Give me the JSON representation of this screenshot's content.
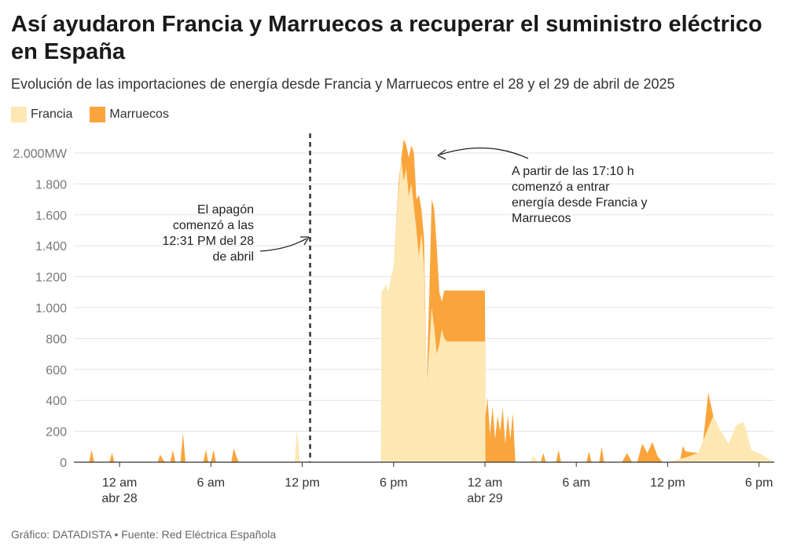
{
  "title": "Así ayudaron Francia y Marruecos a recuperar el suministro eléctrico en España",
  "subtitle": "Evolución de las importaciones de energía desde Francia y Marruecos entre el 28 y el 29 de abril de 2025",
  "footer": "Gráfico: DATADISTA • Fuente: Red Eléctrica Española",
  "colors": {
    "francia": "#fde8b4",
    "marruecos": "#f9a53c",
    "grid": "#e3e3e3",
    "axis": "#333333"
  },
  "chart_data": {
    "type": "area",
    "stacked": true,
    "ylim": [
      0,
      2000
    ],
    "y_ticks": [
      0,
      200,
      400,
      600,
      800,
      1000,
      1200,
      1400,
      1600,
      1800,
      2000
    ],
    "y_tick_labels": [
      "0",
      "200",
      "400",
      "600",
      "800",
      "1.000",
      "1.200",
      "1.400",
      "1.600",
      "1.800",
      "2.000MW"
    ],
    "xlim": [
      "2025-04-27T21:00",
      "2025-04-29T19:00"
    ],
    "x_ticks": [
      {
        "t": "2025-04-28T00:00",
        "line1": "12 am",
        "line2": "abr 28"
      },
      {
        "t": "2025-04-28T06:00",
        "line1": "6 am",
        "line2": ""
      },
      {
        "t": "2025-04-28T12:00",
        "line1": "12 pm",
        "line2": ""
      },
      {
        "t": "2025-04-28T18:00",
        "line1": "6 pm",
        "line2": ""
      },
      {
        "t": "2025-04-29T00:00",
        "line1": "12 am",
        "line2": "abr 29"
      },
      {
        "t": "2025-04-29T06:00",
        "line1": "6 am",
        "line2": ""
      },
      {
        "t": "2025-04-29T12:00",
        "line1": "12 pm",
        "line2": ""
      },
      {
        "t": "2025-04-29T18:00",
        "line1": "6 pm",
        "line2": ""
      }
    ],
    "series": [
      {
        "name": "Francia",
        "points": [
          [
            "2025-04-27T21:00",
            0
          ],
          [
            "2025-04-28T11:30",
            0
          ],
          [
            "2025-04-28T11:40",
            220
          ],
          [
            "2025-04-28T11:50",
            0
          ],
          [
            "2025-04-28T17:10",
            0
          ],
          [
            "2025-04-28T17:12",
            1100
          ],
          [
            "2025-04-28T17:30",
            1150
          ],
          [
            "2025-04-28T17:40",
            1100
          ],
          [
            "2025-04-28T17:50",
            1200
          ],
          [
            "2025-04-28T18:00",
            1260
          ],
          [
            "2025-04-28T18:10",
            1520
          ],
          [
            "2025-04-28T18:20",
            1760
          ],
          [
            "2025-04-28T18:30",
            1960
          ],
          [
            "2025-04-28T18:40",
            1820
          ],
          [
            "2025-04-28T18:50",
            1900
          ],
          [
            "2025-04-28T19:00",
            1720
          ],
          [
            "2025-04-28T19:10",
            1800
          ],
          [
            "2025-04-28T19:20",
            1650
          ],
          [
            "2025-04-28T19:30",
            1500
          ],
          [
            "2025-04-28T19:40",
            1330
          ],
          [
            "2025-04-28T19:50",
            1480
          ],
          [
            "2025-04-28T20:00",
            1260
          ],
          [
            "2025-04-28T20:10",
            500
          ],
          [
            "2025-04-28T20:20",
            720
          ],
          [
            "2025-04-28T20:30",
            1000
          ],
          [
            "2025-04-28T20:40",
            870
          ],
          [
            "2025-04-28T20:50",
            700
          ],
          [
            "2025-04-28T21:00",
            760
          ],
          [
            "2025-04-28T21:10",
            860
          ],
          [
            "2025-04-28T21:20",
            800
          ],
          [
            "2025-04-28T21:30",
            780
          ],
          [
            "2025-04-29T00:00",
            780
          ],
          [
            "2025-04-29T00:02",
            0
          ],
          [
            "2025-04-29T03:00",
            0
          ],
          [
            "2025-04-29T03:10",
            40
          ],
          [
            "2025-04-29T03:30",
            0
          ],
          [
            "2025-04-29T12:00",
            0
          ],
          [
            "2025-04-29T13:10",
            30
          ],
          [
            "2025-04-29T14:00",
            60
          ],
          [
            "2025-04-29T14:30",
            180
          ],
          [
            "2025-04-29T15:00",
            300
          ],
          [
            "2025-04-29T15:30",
            200
          ],
          [
            "2025-04-29T16:00",
            120
          ],
          [
            "2025-04-29T16:30",
            240
          ],
          [
            "2025-04-29T17:00",
            260
          ],
          [
            "2025-04-29T17:30",
            80
          ],
          [
            "2025-04-29T18:00",
            60
          ],
          [
            "2025-04-29T19:00",
            0
          ]
        ]
      },
      {
        "name": "Marruecos",
        "points": [
          [
            "2025-04-27T21:00",
            0
          ],
          [
            "2025-04-27T22:00",
            0
          ],
          [
            "2025-04-27T22:10",
            80
          ],
          [
            "2025-04-27T22:20",
            0
          ],
          [
            "2025-04-27T23:20",
            0
          ],
          [
            "2025-04-27T23:30",
            60
          ],
          [
            "2025-04-27T23:40",
            0
          ],
          [
            "2025-04-28T02:30",
            0
          ],
          [
            "2025-04-28T02:40",
            50
          ],
          [
            "2025-04-28T02:50",
            20
          ],
          [
            "2025-04-28T03:00",
            0
          ],
          [
            "2025-04-28T03:20",
            0
          ],
          [
            "2025-04-28T03:30",
            80
          ],
          [
            "2025-04-28T03:40",
            0
          ],
          [
            "2025-04-28T04:00",
            0
          ],
          [
            "2025-04-28T04:10",
            190
          ],
          [
            "2025-04-28T04:20",
            0
          ],
          [
            "2025-04-28T05:30",
            0
          ],
          [
            "2025-04-28T05:40",
            80
          ],
          [
            "2025-04-28T05:50",
            0
          ],
          [
            "2025-04-28T06:00",
            0
          ],
          [
            "2025-04-28T06:10",
            80
          ],
          [
            "2025-04-28T06:20",
            0
          ],
          [
            "2025-04-28T07:20",
            0
          ],
          [
            "2025-04-28T07:30",
            90
          ],
          [
            "2025-04-28T07:40",
            40
          ],
          [
            "2025-04-28T07:50",
            0
          ],
          [
            "2025-04-28T17:50",
            0
          ],
          [
            "2025-04-28T18:00",
            0
          ],
          [
            "2025-04-28T18:10",
            20
          ],
          [
            "2025-04-28T18:20",
            50
          ],
          [
            "2025-04-28T18:30",
            0
          ],
          [
            "2025-04-28T18:40",
            270
          ],
          [
            "2025-04-28T18:50",
            150
          ],
          [
            "2025-04-28T19:00",
            250
          ],
          [
            "2025-04-28T19:10",
            250
          ],
          [
            "2025-04-28T19:20",
            350
          ],
          [
            "2025-04-28T19:30",
            200
          ],
          [
            "2025-04-28T19:40",
            400
          ],
          [
            "2025-04-28T19:50",
            150
          ],
          [
            "2025-04-28T20:00",
            190
          ],
          [
            "2025-04-28T20:10",
            0
          ],
          [
            "2025-04-28T20:20",
            330
          ],
          [
            "2025-04-28T20:30",
            700
          ],
          [
            "2025-04-28T20:40",
            770
          ],
          [
            "2025-04-28T20:50",
            700
          ],
          [
            "2025-04-28T21:00",
            340
          ],
          [
            "2025-04-28T21:10",
            180
          ],
          [
            "2025-04-28T21:20",
            310
          ],
          [
            "2025-04-28T21:30",
            330
          ],
          [
            "2025-04-29T00:00",
            330
          ],
          [
            "2025-04-29T00:02",
            300
          ],
          [
            "2025-04-29T00:10",
            420
          ],
          [
            "2025-04-29T00:20",
            180
          ],
          [
            "2025-04-29T00:30",
            360
          ],
          [
            "2025-04-29T00:40",
            150
          ],
          [
            "2025-04-29T00:50",
            300
          ],
          [
            "2025-04-29T01:00",
            200
          ],
          [
            "2025-04-29T01:10",
            350
          ],
          [
            "2025-04-29T01:20",
            120
          ],
          [
            "2025-04-29T01:30",
            300
          ],
          [
            "2025-04-29T01:40",
            150
          ],
          [
            "2025-04-29T01:50",
            320
          ],
          [
            "2025-04-29T02:00",
            0
          ],
          [
            "2025-04-29T03:40",
            0
          ],
          [
            "2025-04-29T03:50",
            60
          ],
          [
            "2025-04-29T04:00",
            0
          ],
          [
            "2025-04-29T04:40",
            0
          ],
          [
            "2025-04-29T04:50",
            80
          ],
          [
            "2025-04-29T05:00",
            0
          ],
          [
            "2025-04-29T06:40",
            0
          ],
          [
            "2025-04-29T06:50",
            70
          ],
          [
            "2025-04-29T07:00",
            0
          ],
          [
            "2025-04-29T07:30",
            0
          ],
          [
            "2025-04-29T07:40",
            100
          ],
          [
            "2025-04-29T07:50",
            0
          ],
          [
            "2025-04-29T09:00",
            0
          ],
          [
            "2025-04-29T09:20",
            60
          ],
          [
            "2025-04-29T09:40",
            0
          ],
          [
            "2025-04-29T10:00",
            0
          ],
          [
            "2025-04-29T10:20",
            120
          ],
          [
            "2025-04-29T10:40",
            60
          ],
          [
            "2025-04-29T11:00",
            130
          ],
          [
            "2025-04-29T11:20",
            40
          ],
          [
            "2025-04-29T11:40",
            0
          ],
          [
            "2025-04-29T12:50",
            0
          ],
          [
            "2025-04-29T13:00",
            80
          ],
          [
            "2025-04-29T13:10",
            40
          ],
          [
            "2025-04-29T14:00",
            0
          ],
          [
            "2025-04-29T14:20",
            0
          ],
          [
            "2025-04-29T14:40",
            230
          ],
          [
            "2025-04-29T15:00",
            0
          ],
          [
            "2025-04-29T19:00",
            0
          ]
        ]
      }
    ],
    "annotations": [
      {
        "id": "apagon",
        "lines": [
          "El apagón",
          "comenzó a las",
          "12:31 PM del 28",
          "de abril"
        ]
      },
      {
        "id": "entrada",
        "lines": [
          "A partir de las 17:10 h",
          "comenzó a entrar",
          "energía desde Francia y",
          "Marruecos"
        ]
      }
    ],
    "blackout_time": "2025-04-28T12:31"
  }
}
